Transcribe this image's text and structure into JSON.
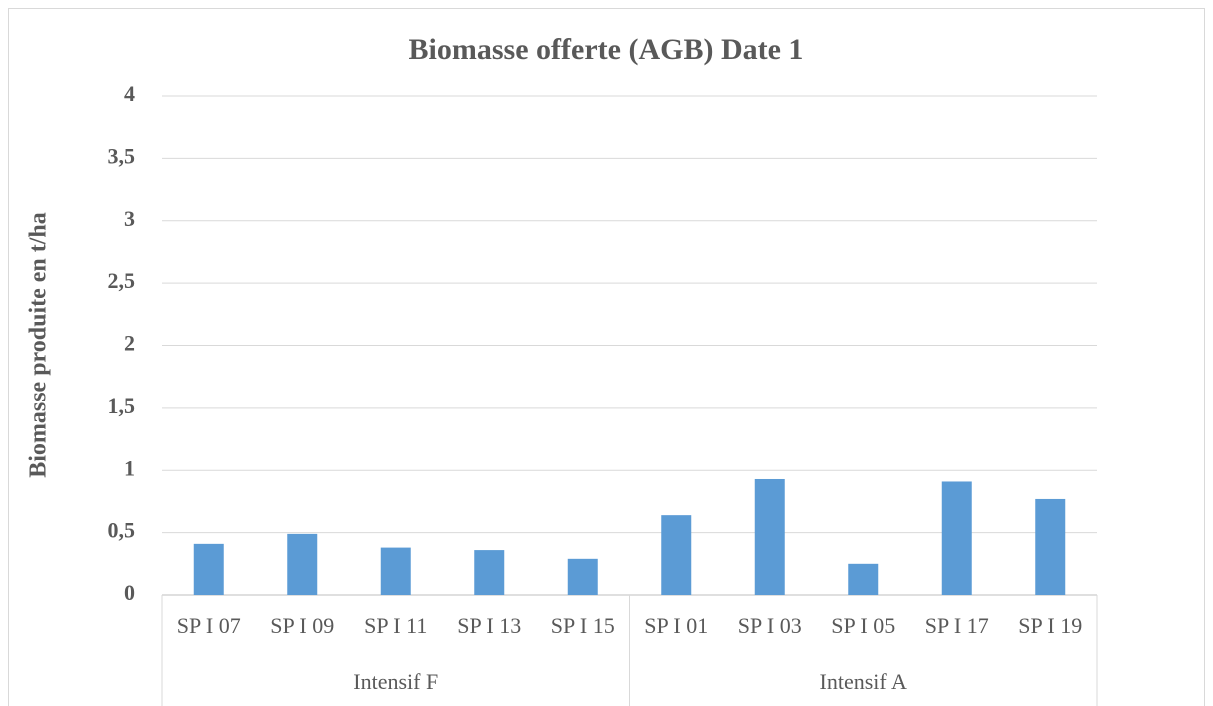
{
  "chart_data": {
    "type": "bar",
    "title": "Biomasse offerte (AGB) Date 1",
    "y_label": "Biomasse produite en t/ha",
    "groups": [
      {
        "name": "Intensif F",
        "categories": [
          "SP I 07",
          "SP I 09",
          "SP I 11",
          "SP I 13",
          "SP I 15"
        ]
      },
      {
        "name": "Intensif A",
        "categories": [
          "SP I 01",
          "SP I 03",
          "SP I 05",
          "SP I 17",
          "SP I 19"
        ]
      }
    ],
    "values": [
      0.41,
      0.49,
      0.38,
      0.36,
      0.29,
      0.64,
      0.93,
      0.25,
      0.91,
      0.77
    ],
    "color": "#5b9bd5",
    "ylim": [
      0,
      4
    ],
    "yticks": [
      0,
      {
        "value": 0.5,
        "label": "0,5"
      },
      1,
      {
        "value": 1.5,
        "label": "1,5"
      },
      2,
      {
        "value": 2.5,
        "label": "2,5"
      },
      3,
      {
        "value": 3.5,
        "label": "3,5"
      },
      4
    ],
    "grid": true
  }
}
